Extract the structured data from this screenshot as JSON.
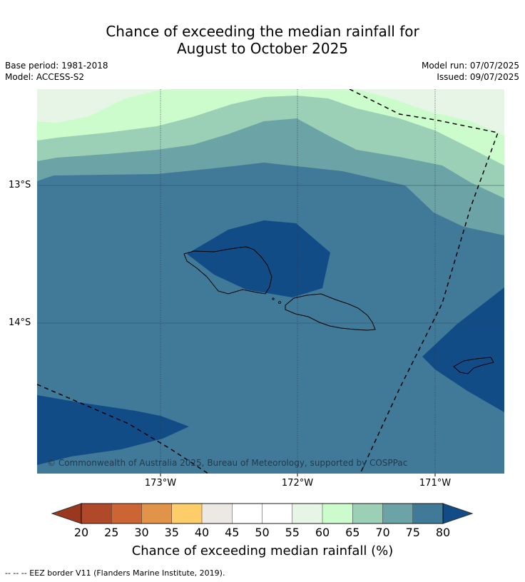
{
  "title_line1": "Chance of exceeding the median rainfall for",
  "title_line2": "August to October 2025",
  "base_period": "Base period: 1981-2018",
  "model": "Model: ACCESS-S2",
  "model_run": "Model run: 07/07/2025",
  "issued": "Issued: 09/07/2025",
  "lat_labels": [
    "13°S",
    "14°S"
  ],
  "lon_labels": [
    "173°W",
    "172°W",
    "171°W"
  ],
  "copyright": "© Commonwealth of Australia 2025, Bureau of Meteorology, supported by COSPPac",
  "colorbar": {
    "title": "Chance of exceeding median rainfall (%)",
    "ticks": [
      "20",
      "25",
      "30",
      "35",
      "40",
      "45",
      "50",
      "55",
      "60",
      "65",
      "70",
      "75",
      "80"
    ],
    "colors": [
      "#b0492a",
      "#cd6433",
      "#e2934a",
      "#fdcd6a",
      "#ece8e4",
      "#ffffff",
      "#ffffff",
      "#e7f5e7",
      "#ccfccc",
      "#9bd0b6",
      "#6ca3a6",
      "#417a99"
    ],
    "under_color": "#99371f",
    "over_color": "#124c86"
  },
  "footnote": "--  --  -- EEZ border V11 (Flanders Marine Institute, 2019)."
}
